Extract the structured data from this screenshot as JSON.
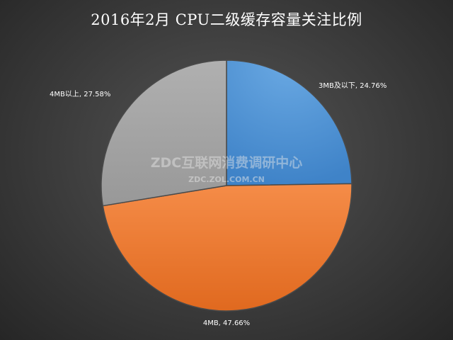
{
  "chart_data": {
    "type": "pie",
    "title": "2016年2月 CPU二级缓存容量关注比例",
    "slices": [
      {
        "label": "3MB及以下",
        "value": 24.76,
        "display": "3MB及以下, 24.76%",
        "color": "#5b9bd5"
      },
      {
        "label": "4MB",
        "value": 47.66,
        "display": "4MB, 47.66%",
        "color": "#ed7d31"
      },
      {
        "label": "4MB以上",
        "value": 27.58,
        "display": "4MB以上, 27.58%",
        "color": "#a5a5a5"
      }
    ],
    "legend": "none",
    "data_labels": true
  },
  "watermark": {
    "main": "ZDC互联网消费调研中心",
    "sub": "ZDC.ZOL.COM.CN"
  }
}
